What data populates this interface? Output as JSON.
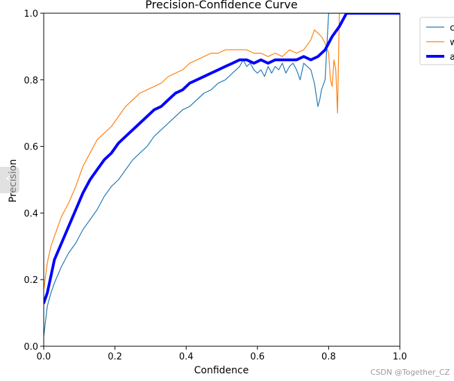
{
  "chart_data": {
    "type": "line",
    "title": "Precision-Confidence Curve",
    "xlabel": "Confidence",
    "ylabel": "Precision",
    "xlim": [
      0,
      1
    ],
    "ylim": [
      0,
      1
    ],
    "xticks": [
      "0.0",
      "0.2",
      "0.4",
      "0.6",
      "0.8",
      "1.0"
    ],
    "yticks": [
      "0.0",
      "0.2",
      "0.4",
      "0.6",
      "0.8",
      "1.0"
    ],
    "grid": false,
    "legend_position": "outside-top-right",
    "legend_labels": [
      "c",
      "w",
      "a"
    ],
    "series": [
      {
        "color": "#1f77b4",
        "style": "thin",
        "x": [
          0.0,
          0.01,
          0.02,
          0.03,
          0.05,
          0.07,
          0.09,
          0.11,
          0.13,
          0.15,
          0.17,
          0.19,
          0.21,
          0.23,
          0.25,
          0.27,
          0.29,
          0.31,
          0.33,
          0.35,
          0.37,
          0.39,
          0.41,
          0.43,
          0.45,
          0.47,
          0.49,
          0.51,
          0.53,
          0.55,
          0.56,
          0.57,
          0.58,
          0.59,
          0.6,
          0.61,
          0.62,
          0.63,
          0.64,
          0.65,
          0.66,
          0.67,
          0.68,
          0.69,
          0.7,
          0.71,
          0.72,
          0.73,
          0.74,
          0.75,
          0.76,
          0.77,
          0.775,
          0.78,
          0.79,
          0.8,
          0.81,
          0.82,
          1.0
        ],
        "y": [
          0.03,
          0.12,
          0.16,
          0.19,
          0.24,
          0.28,
          0.31,
          0.35,
          0.38,
          0.41,
          0.45,
          0.48,
          0.5,
          0.53,
          0.56,
          0.58,
          0.6,
          0.63,
          0.65,
          0.67,
          0.69,
          0.71,
          0.72,
          0.74,
          0.76,
          0.77,
          0.79,
          0.8,
          0.82,
          0.84,
          0.86,
          0.84,
          0.85,
          0.83,
          0.82,
          0.83,
          0.81,
          0.84,
          0.82,
          0.84,
          0.83,
          0.85,
          0.82,
          0.84,
          0.85,
          0.83,
          0.8,
          0.85,
          0.84,
          0.83,
          0.79,
          0.72,
          0.74,
          0.77,
          0.8,
          1.0,
          1.0,
          1.0,
          1.0
        ]
      },
      {
        "color": "#ff7f0e",
        "style": "thin",
        "x": [
          0.0,
          0.01,
          0.02,
          0.03,
          0.05,
          0.07,
          0.09,
          0.11,
          0.13,
          0.15,
          0.17,
          0.19,
          0.21,
          0.23,
          0.25,
          0.27,
          0.29,
          0.31,
          0.33,
          0.35,
          0.37,
          0.39,
          0.41,
          0.43,
          0.45,
          0.47,
          0.49,
          0.51,
          0.53,
          0.55,
          0.57,
          0.59,
          0.61,
          0.63,
          0.65,
          0.67,
          0.69,
          0.71,
          0.73,
          0.75,
          0.76,
          0.77,
          0.78,
          0.79,
          0.8,
          0.805,
          0.81,
          0.815,
          0.82,
          0.825,
          0.83,
          0.84,
          1.0
        ],
        "y": [
          0.17,
          0.25,
          0.3,
          0.33,
          0.39,
          0.43,
          0.48,
          0.54,
          0.58,
          0.62,
          0.64,
          0.66,
          0.69,
          0.72,
          0.74,
          0.76,
          0.77,
          0.78,
          0.79,
          0.81,
          0.82,
          0.83,
          0.85,
          0.86,
          0.87,
          0.88,
          0.88,
          0.89,
          0.89,
          0.89,
          0.89,
          0.88,
          0.88,
          0.87,
          0.88,
          0.87,
          0.89,
          0.88,
          0.89,
          0.92,
          0.95,
          0.94,
          0.93,
          0.91,
          0.88,
          0.8,
          0.78,
          0.86,
          0.83,
          0.7,
          1.0,
          1.0,
          1.0
        ]
      },
      {
        "color": "#0000ff",
        "style": "thick",
        "x": [
          0.0,
          0.01,
          0.02,
          0.03,
          0.05,
          0.07,
          0.09,
          0.11,
          0.13,
          0.15,
          0.17,
          0.19,
          0.21,
          0.23,
          0.25,
          0.27,
          0.29,
          0.31,
          0.33,
          0.35,
          0.37,
          0.39,
          0.41,
          0.43,
          0.45,
          0.47,
          0.49,
          0.51,
          0.53,
          0.55,
          0.57,
          0.59,
          0.61,
          0.63,
          0.65,
          0.67,
          0.69,
          0.71,
          0.73,
          0.75,
          0.77,
          0.79,
          0.81,
          0.83,
          0.85,
          1.0
        ],
        "y": [
          0.13,
          0.16,
          0.21,
          0.26,
          0.31,
          0.36,
          0.41,
          0.46,
          0.5,
          0.53,
          0.56,
          0.58,
          0.61,
          0.63,
          0.65,
          0.67,
          0.69,
          0.71,
          0.72,
          0.74,
          0.76,
          0.77,
          0.79,
          0.8,
          0.81,
          0.82,
          0.83,
          0.84,
          0.85,
          0.86,
          0.86,
          0.85,
          0.86,
          0.85,
          0.86,
          0.86,
          0.86,
          0.86,
          0.87,
          0.86,
          0.87,
          0.89,
          0.93,
          0.96,
          1.0,
          1.0
        ]
      }
    ]
  },
  "watermark": "CSDN @Together_CZ",
  "side_handle_icon": "chevron-left-icon",
  "side_handle_glyph": "‹"
}
